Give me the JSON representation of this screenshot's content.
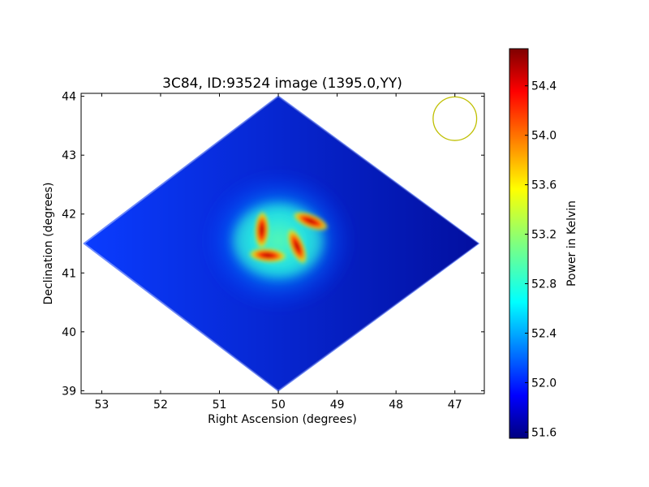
{
  "chart_data": {
    "type": "heatmap",
    "title": "3C84, ID:93524 image (1395.0,YY)",
    "xlabel": "Right Ascension (degrees)",
    "ylabel": "Declination (degrees)",
    "xlim": [
      53.35,
      46.5
    ],
    "ylim": [
      38.95,
      44.05
    ],
    "x_ticks": [
      53,
      52,
      51,
      50,
      49,
      48,
      47
    ],
    "y_ticks": [
      39,
      40,
      41,
      42,
      43,
      44
    ],
    "grid": false,
    "map_footprint": {
      "shape": "diamond",
      "center": [
        50.0,
        41.5
      ],
      "top": [
        50.0,
        44.0
      ],
      "bottom": [
        50.0,
        39.0
      ],
      "left": [
        53.3,
        41.5
      ],
      "right": [
        46.6,
        41.5
      ],
      "background_level": 52.0
    },
    "beam": {
      "center": [
        47.0,
        43.62
      ],
      "radius_deg": 0.37,
      "color": "#bfbf00"
    },
    "features": [
      {
        "kind": "hotspot",
        "ra": 50.28,
        "dec": 41.73,
        "value": 54.6
      },
      {
        "kind": "hotspot",
        "ra": 49.68,
        "dec": 41.45,
        "value": 54.6
      },
      {
        "kind": "hotspot",
        "ra": 50.18,
        "dec": 41.3,
        "value": 54.4
      },
      {
        "kind": "hotspot",
        "ra": 49.45,
        "dec": 41.88,
        "value": 54.4
      },
      {
        "kind": "halo",
        "ra": 50.0,
        "dec": 41.55,
        "value": 53.0
      }
    ],
    "colorbar": {
      "label": "Power in Kelvin",
      "range": [
        51.55,
        54.7
      ],
      "ticks": [
        {
          "value": 51.6,
          "label": "51.6"
        },
        {
          "value": 52.0,
          "label": "52.0"
        },
        {
          "value": 52.4,
          "label": "52.4"
        },
        {
          "value": 52.8,
          "label": "52.8"
        },
        {
          "value": 53.2,
          "label": "53.2"
        },
        {
          "value": 53.6,
          "label": "53.6"
        },
        {
          "value": 54.0,
          "label": "54.0"
        },
        {
          "value": 54.4,
          "label": "54.4"
        }
      ],
      "colormap": "jet"
    }
  }
}
